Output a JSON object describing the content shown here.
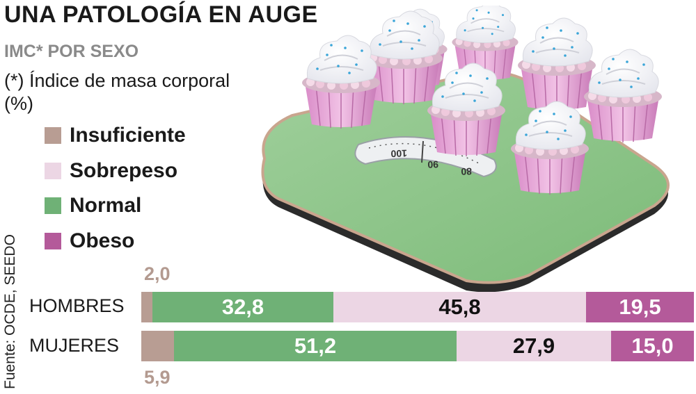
{
  "title": "UNA PATOLOGÍA EN AUGE",
  "subtitle": "IMC* POR SEXO",
  "note_line1": "(*) Índice de masa corporal",
  "note_line2": "(%)",
  "source": "Fuente: OCDE, SEEDO",
  "legend": [
    {
      "label": "Insuficiente",
      "color": "#b89d93"
    },
    {
      "label": "Sobrepeso",
      "color": "#ecd6e4"
    },
    {
      "label": "Normal",
      "color": "#6fb176"
    },
    {
      "label": "Obeso",
      "color": "#b45a9a"
    }
  ],
  "scale_marks": [
    "100",
    "90",
    "80"
  ],
  "chart_data": {
    "type": "bar",
    "stacked": true,
    "orientation": "horizontal",
    "title": "UNA PATOLOGÍA EN AUGE",
    "subtitle": "IMC* POR SEXO",
    "unit": "%",
    "categories": [
      "HOMBRES",
      "MUJERES"
    ],
    "series": [
      {
        "name": "Insuficiente",
        "values": [
          2.0,
          5.9
        ],
        "labels": [
          "2,0",
          "5,9"
        ],
        "color": "#b89d93"
      },
      {
        "name": "Normal",
        "values": [
          32.8,
          51.2
        ],
        "labels": [
          "32,8",
          "51,2"
        ],
        "color": "#6fb176"
      },
      {
        "name": "Sobrepeso",
        "values": [
          45.8,
          27.9
        ],
        "labels": [
          "45,8",
          "27,9"
        ],
        "color": "#ecd6e4"
      },
      {
        "name": "Obeso",
        "values": [
          19.5,
          15.0
        ],
        "labels": [
          "19,5",
          "15,0"
        ],
        "color": "#b45a9a"
      }
    ]
  }
}
